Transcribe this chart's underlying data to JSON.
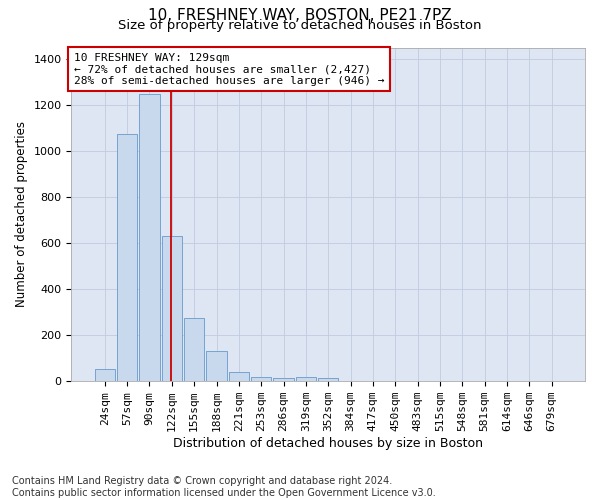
{
  "title": "10, FRESHNEY WAY, BOSTON, PE21 7PZ",
  "subtitle": "Size of property relative to detached houses in Boston",
  "xlabel": "Distribution of detached houses by size in Boston",
  "ylabel": "Number of detached properties",
  "categories": [
    "24sqm",
    "57sqm",
    "90sqm",
    "122sqm",
    "155sqm",
    "188sqm",
    "221sqm",
    "253sqm",
    "286sqm",
    "319sqm",
    "352sqm",
    "384sqm",
    "417sqm",
    "450sqm",
    "483sqm",
    "515sqm",
    "548sqm",
    "581sqm",
    "614sqm",
    "646sqm",
    "679sqm"
  ],
  "values": [
    55,
    1075,
    1250,
    630,
    275,
    130,
    38,
    20,
    15,
    20,
    15,
    0,
    0,
    0,
    0,
    0,
    0,
    0,
    0,
    0,
    0
  ],
  "bar_color": "#c8d9ee",
  "bar_edge_color": "#6699cc",
  "property_line_x": 2.985,
  "property_line_color": "#cc0000",
  "annotation_text": "10 FRESHNEY WAY: 129sqm\n← 72% of detached houses are smaller (2,427)\n28% of semi-detached houses are larger (946) →",
  "annotation_box_color": "#ffffff",
  "annotation_box_edge": "#cc0000",
  "grid_color": "#c0cce0",
  "background_color": "#dde6f2",
  "ylim_max": 1450,
  "yticks": [
    0,
    200,
    400,
    600,
    800,
    1000,
    1200,
    1400
  ],
  "footer": "Contains HM Land Registry data © Crown copyright and database right 2024.\nContains public sector information licensed under the Open Government Licence v3.0.",
  "title_fontsize": 11,
  "subtitle_fontsize": 9.5,
  "xlabel_fontsize": 9,
  "ylabel_fontsize": 8.5,
  "tick_fontsize": 8,
  "annotation_fontsize": 8,
  "footer_fontsize": 7
}
